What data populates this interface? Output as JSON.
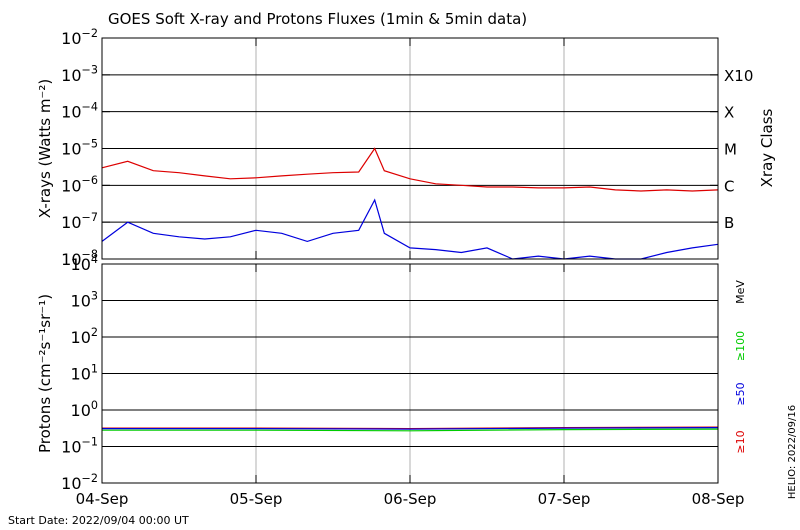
{
  "chart_data": [
    {
      "type": "line",
      "title": "GOES Soft X-ray and Protons Fluxes   (1min & 5min data)",
      "ylabel": "X-rays (Watts m⁻²)",
      "yscale": "log",
      "ylim": [
        1e-08,
        0.01
      ],
      "ytick_exponents": [
        -2,
        -3,
        -4,
        -5,
        -6,
        -7,
        -8
      ],
      "right_axis_label": "Xray Class",
      "class_labels": [
        {
          "label": "X10",
          "value": 0.001
        },
        {
          "label": "X",
          "value": 0.0001
        },
        {
          "label": "M",
          "value": 1e-05
        },
        {
          "label": "C",
          "value": 1e-06
        },
        {
          "label": "B",
          "value": 1e-07
        }
      ],
      "grid": true,
      "series": [
        {
          "color": "#dd0000",
          "x": [
            "2022-09-04T00:00",
            "2022-09-04T04:00",
            "2022-09-04T08:00",
            "2022-09-04T12:00",
            "2022-09-04T16:00",
            "2022-09-04T20:00",
            "2022-09-05T00:00",
            "2022-09-05T04:00",
            "2022-09-05T08:00",
            "2022-09-05T12:00",
            "2022-09-05T16:00",
            "2022-09-05T18:30",
            "2022-09-05T20:00",
            "2022-09-06T00:00",
            "2022-09-06T04:00",
            "2022-09-06T08:00",
            "2022-09-06T12:00",
            "2022-09-06T16:00",
            "2022-09-06T20:00",
            "2022-09-07T00:00",
            "2022-09-07T04:00",
            "2022-09-07T08:00",
            "2022-09-07T12:00",
            "2022-09-07T16:00",
            "2022-09-07T20:00",
            "2022-09-08T00:00"
          ],
          "y": [
            3e-06,
            4.5e-06,
            2.5e-06,
            2.2e-06,
            1.8e-06,
            1.5e-06,
            1.6e-06,
            1.8e-06,
            2e-06,
            2.2e-06,
            2.3e-06,
            1e-05,
            2.5e-06,
            1.5e-06,
            1.1e-06,
            1e-06,
            9e-07,
            9e-07,
            8.5e-07,
            8.5e-07,
            9e-07,
            7.5e-07,
            7e-07,
            7.5e-07,
            7e-07,
            7.5e-07
          ]
        },
        {
          "color": "#0000dd",
          "x": [
            "2022-09-04T00:00",
            "2022-09-04T04:00",
            "2022-09-04T08:00",
            "2022-09-04T12:00",
            "2022-09-04T16:00",
            "2022-09-04T20:00",
            "2022-09-05T00:00",
            "2022-09-05T04:00",
            "2022-09-05T08:00",
            "2022-09-05T12:00",
            "2022-09-05T16:00",
            "2022-09-05T18:30",
            "2022-09-05T20:00",
            "2022-09-06T00:00",
            "2022-09-06T04:00",
            "2022-09-06T08:00",
            "2022-09-06T12:00",
            "2022-09-06T16:00",
            "2022-09-06T20:00",
            "2022-09-07T00:00",
            "2022-09-07T04:00",
            "2022-09-07T08:00",
            "2022-09-07T12:00",
            "2022-09-07T16:00",
            "2022-09-07T20:00",
            "2022-09-08T00:00"
          ],
          "y": [
            3e-08,
            1e-07,
            5e-08,
            4e-08,
            3.5e-08,
            4e-08,
            6e-08,
            5e-08,
            3e-08,
            5e-08,
            6e-08,
            4e-07,
            5e-08,
            2e-08,
            1.8e-08,
            1.5e-08,
            2e-08,
            1e-08,
            1.2e-08,
            1e-08,
            1.2e-08,
            1e-08,
            1e-08,
            1.5e-08,
            2e-08,
            2.5e-08
          ]
        }
      ]
    },
    {
      "type": "line",
      "ylabel": "Protons (cm⁻²s⁻¹sr⁻¹)",
      "yscale": "log",
      "ylim": [
        0.01,
        10000.0
      ],
      "ytick_exponents": [
        4,
        3,
        2,
        1,
        0,
        -1,
        -2
      ],
      "threshold": 10,
      "unit_label": "MeV",
      "grid": true,
      "series": [
        {
          "name": "≥10",
          "color": "#dd0000",
          "x": [
            "2022-09-04T00:00",
            "2022-09-05T00:00",
            "2022-09-06T00:00",
            "2022-09-07T00:00",
            "2022-09-08T00:00"
          ],
          "y": [
            0.32,
            0.32,
            0.31,
            0.33,
            0.34
          ]
        },
        {
          "name": "≥50",
          "color": "#0000dd",
          "x": [
            "2022-09-04T00:00",
            "2022-09-05T00:00",
            "2022-09-06T00:00",
            "2022-09-07T00:00",
            "2022-09-08T00:00"
          ],
          "y": [
            0.31,
            0.31,
            0.3,
            0.32,
            0.33
          ]
        },
        {
          "name": "≥100",
          "color": "#00cc00",
          "x": [
            "2022-09-04T00:00",
            "2022-09-05T00:00",
            "2022-09-06T00:00",
            "2022-09-07T00:00",
            "2022-09-08T00:00"
          ],
          "y": [
            0.28,
            0.28,
            0.27,
            0.29,
            0.3
          ]
        }
      ]
    }
  ],
  "x_tick_labels": [
    "04-Sep",
    "05-Sep",
    "06-Sep",
    "07-Sep",
    "08-Sep"
  ],
  "x_start": "2022-09-04T00:00",
  "x_end": "2022-09-08T00:00",
  "start_date_text": "Start Date: 2022/09/04 00:00 UT",
  "credit_text": "HELIO: 2022/09/16"
}
